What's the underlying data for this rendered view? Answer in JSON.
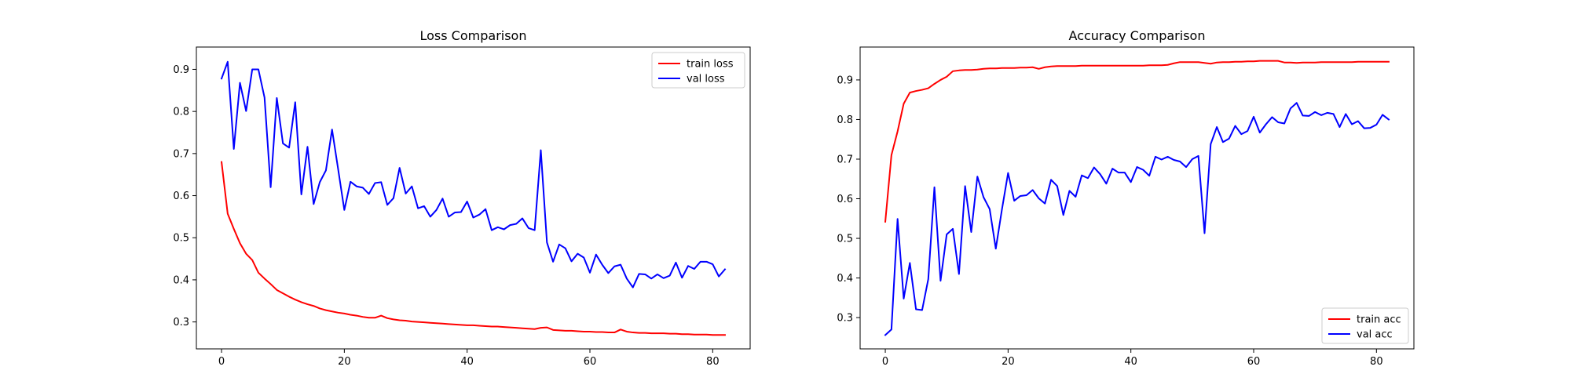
{
  "chart_data": [
    {
      "type": "line",
      "title": "Loss Comparison",
      "xlabel": "",
      "ylabel": "",
      "xlim": [
        -4.1,
        86.1
      ],
      "ylim": [
        0.236,
        0.953
      ],
      "xticks": [
        0,
        20,
        40,
        60,
        80
      ],
      "yticks": [
        0.3,
        0.4,
        0.5,
        0.6,
        0.7,
        0.8,
        0.9
      ],
      "grid": false,
      "legend_position": "top-right",
      "series": [
        {
          "name": "train loss",
          "color": "#ff0000",
          "x": [
            0,
            1,
            2,
            3,
            4,
            5,
            6,
            7,
            8,
            9,
            10,
            11,
            12,
            13,
            14,
            15,
            16,
            17,
            18,
            19,
            20,
            21,
            22,
            23,
            24,
            25,
            26,
            27,
            28,
            29,
            30,
            31,
            32,
            33,
            34,
            35,
            36,
            37,
            38,
            39,
            40,
            41,
            42,
            43,
            44,
            45,
            46,
            47,
            48,
            49,
            50,
            51,
            52,
            53,
            54,
            55,
            56,
            57,
            58,
            59,
            60,
            61,
            62,
            63,
            64,
            65,
            66,
            67,
            68,
            69,
            70,
            71,
            72,
            73,
            74,
            75,
            76,
            77,
            78,
            79,
            80,
            81,
            82
          ],
          "y": [
            0.68,
            0.557,
            0.521,
            0.487,
            0.462,
            0.447,
            0.417,
            0.403,
            0.39,
            0.376,
            0.368,
            0.36,
            0.353,
            0.347,
            0.342,
            0.338,
            0.332,
            0.328,
            0.325,
            0.322,
            0.32,
            0.317,
            0.315,
            0.312,
            0.31,
            0.31,
            0.315,
            0.309,
            0.306,
            0.304,
            0.303,
            0.301,
            0.3,
            0.299,
            0.298,
            0.297,
            0.296,
            0.295,
            0.294,
            0.293,
            0.292,
            0.292,
            0.291,
            0.29,
            0.289,
            0.289,
            0.288,
            0.287,
            0.286,
            0.285,
            0.284,
            0.283,
            0.286,
            0.287,
            0.281,
            0.28,
            0.279,
            0.279,
            0.278,
            0.277,
            0.277,
            0.276,
            0.276,
            0.275,
            0.275,
            0.282,
            0.277,
            0.275,
            0.274,
            0.274,
            0.273,
            0.273,
            0.273,
            0.272,
            0.272,
            0.271,
            0.271,
            0.27,
            0.27,
            0.27,
            0.269,
            0.269,
            0.269
          ]
        },
        {
          "name": "val loss",
          "color": "#0000ff",
          "x": [
            0,
            1,
            2,
            3,
            4,
            5,
            6,
            7,
            8,
            9,
            10,
            11,
            12,
            13,
            14,
            15,
            16,
            17,
            18,
            19,
            20,
            21,
            22,
            23,
            24,
            25,
            26,
            27,
            28,
            29,
            30,
            31,
            32,
            33,
            34,
            35,
            36,
            37,
            38,
            39,
            40,
            41,
            42,
            43,
            44,
            45,
            46,
            47,
            48,
            49,
            50,
            51,
            52,
            53,
            54,
            55,
            56,
            57,
            58,
            59,
            60,
            61,
            62,
            63,
            64,
            65,
            66,
            67,
            68,
            69,
            70,
            71,
            72,
            73,
            74,
            75,
            76,
            77,
            78,
            79,
            80,
            81,
            82
          ],
          "y": [
            0.878,
            0.918,
            0.711,
            0.868,
            0.801,
            0.9,
            0.9,
            0.833,
            0.62,
            0.832,
            0.724,
            0.714,
            0.822,
            0.603,
            0.716,
            0.58,
            0.632,
            0.66,
            0.757,
            0.662,
            0.566,
            0.633,
            0.622,
            0.619,
            0.604,
            0.63,
            0.632,
            0.578,
            0.594,
            0.666,
            0.605,
            0.622,
            0.57,
            0.575,
            0.55,
            0.566,
            0.593,
            0.55,
            0.56,
            0.561,
            0.586,
            0.548,
            0.555,
            0.568,
            0.518,
            0.525,
            0.52,
            0.53,
            0.533,
            0.546,
            0.523,
            0.518,
            0.708,
            0.489,
            0.443,
            0.484,
            0.475,
            0.444,
            0.462,
            0.453,
            0.417,
            0.46,
            0.436,
            0.416,
            0.432,
            0.436,
            0.403,
            0.382,
            0.414,
            0.413,
            0.403,
            0.413,
            0.404,
            0.41,
            0.441,
            0.405,
            0.433,
            0.426,
            0.443,
            0.443,
            0.437,
            0.408,
            0.425
          ]
        }
      ]
    },
    {
      "type": "line",
      "title": "Accuracy Comparison",
      "xlabel": "",
      "ylabel": "",
      "xlim": [
        -4.1,
        86.1
      ],
      "ylim": [
        0.221,
        0.983
      ],
      "xticks": [
        0,
        20,
        40,
        60,
        80
      ],
      "yticks": [
        0.3,
        0.4,
        0.5,
        0.6,
        0.7,
        0.8,
        0.9
      ],
      "grid": false,
      "legend_position": "bottom-right",
      "series": [
        {
          "name": "train acc",
          "color": "#ff0000",
          "x": [
            0,
            1,
            2,
            3,
            4,
            5,
            6,
            7,
            8,
            9,
            10,
            11,
            12,
            13,
            14,
            15,
            16,
            17,
            18,
            19,
            20,
            21,
            22,
            23,
            24,
            25,
            26,
            27,
            28,
            29,
            30,
            31,
            32,
            33,
            34,
            35,
            36,
            37,
            38,
            39,
            40,
            41,
            42,
            43,
            44,
            45,
            46,
            47,
            48,
            49,
            50,
            51,
            52,
            53,
            54,
            55,
            56,
            57,
            58,
            59,
            60,
            61,
            62,
            63,
            64,
            65,
            66,
            67,
            68,
            69,
            70,
            71,
            72,
            73,
            74,
            75,
            76,
            77,
            78,
            79,
            80,
            81,
            82
          ],
          "y": [
            0.542,
            0.71,
            0.77,
            0.84,
            0.868,
            0.872,
            0.875,
            0.879,
            0.89,
            0.9,
            0.908,
            0.922,
            0.924,
            0.925,
            0.925,
            0.926,
            0.928,
            0.929,
            0.929,
            0.93,
            0.93,
            0.93,
            0.931,
            0.931,
            0.932,
            0.928,
            0.932,
            0.934,
            0.935,
            0.935,
            0.935,
            0.935,
            0.936,
            0.936,
            0.936,
            0.936,
            0.936,
            0.936,
            0.936,
            0.936,
            0.936,
            0.936,
            0.936,
            0.937,
            0.937,
            0.937,
            0.938,
            0.942,
            0.945,
            0.945,
            0.945,
            0.945,
            0.943,
            0.941,
            0.944,
            0.945,
            0.945,
            0.946,
            0.946,
            0.947,
            0.947,
            0.948,
            0.948,
            0.948,
            0.948,
            0.944,
            0.944,
            0.943,
            0.944,
            0.944,
            0.944,
            0.945,
            0.945,
            0.945,
            0.945,
            0.945,
            0.945,
            0.946,
            0.946,
            0.946,
            0.946,
            0.946,
            0.946
          ]
        },
        {
          "name": "val acc",
          "color": "#0000ff",
          "x": [
            0,
            1,
            2,
            3,
            4,
            5,
            6,
            7,
            8,
            9,
            10,
            11,
            12,
            13,
            14,
            15,
            16,
            17,
            18,
            19,
            20,
            21,
            22,
            23,
            24,
            25,
            26,
            27,
            28,
            29,
            30,
            31,
            32,
            33,
            34,
            35,
            36,
            37,
            38,
            39,
            40,
            41,
            42,
            43,
            44,
            45,
            46,
            47,
            48,
            49,
            50,
            51,
            52,
            53,
            54,
            55,
            56,
            57,
            58,
            59,
            60,
            61,
            62,
            63,
            64,
            65,
            66,
            67,
            68,
            69,
            70,
            71,
            72,
            73,
            74,
            75,
            76,
            77,
            78,
            79,
            80,
            81,
            82
          ],
          "y": [
            0.256,
            0.27,
            0.549,
            0.348,
            0.438,
            0.321,
            0.319,
            0.397,
            0.629,
            0.393,
            0.51,
            0.524,
            0.41,
            0.632,
            0.516,
            0.656,
            0.604,
            0.574,
            0.474,
            0.573,
            0.665,
            0.595,
            0.607,
            0.609,
            0.622,
            0.601,
            0.588,
            0.648,
            0.632,
            0.559,
            0.62,
            0.605,
            0.659,
            0.652,
            0.679,
            0.662,
            0.638,
            0.676,
            0.666,
            0.666,
            0.642,
            0.68,
            0.673,
            0.658,
            0.706,
            0.699,
            0.706,
            0.698,
            0.694,
            0.68,
            0.7,
            0.708,
            0.513,
            0.738,
            0.781,
            0.743,
            0.752,
            0.784,
            0.763,
            0.771,
            0.807,
            0.767,
            0.788,
            0.806,
            0.793,
            0.79,
            0.828,
            0.842,
            0.81,
            0.809,
            0.819,
            0.811,
            0.817,
            0.814,
            0.781,
            0.814,
            0.788,
            0.796,
            0.778,
            0.779,
            0.787,
            0.812,
            0.8
          ]
        }
      ]
    }
  ]
}
